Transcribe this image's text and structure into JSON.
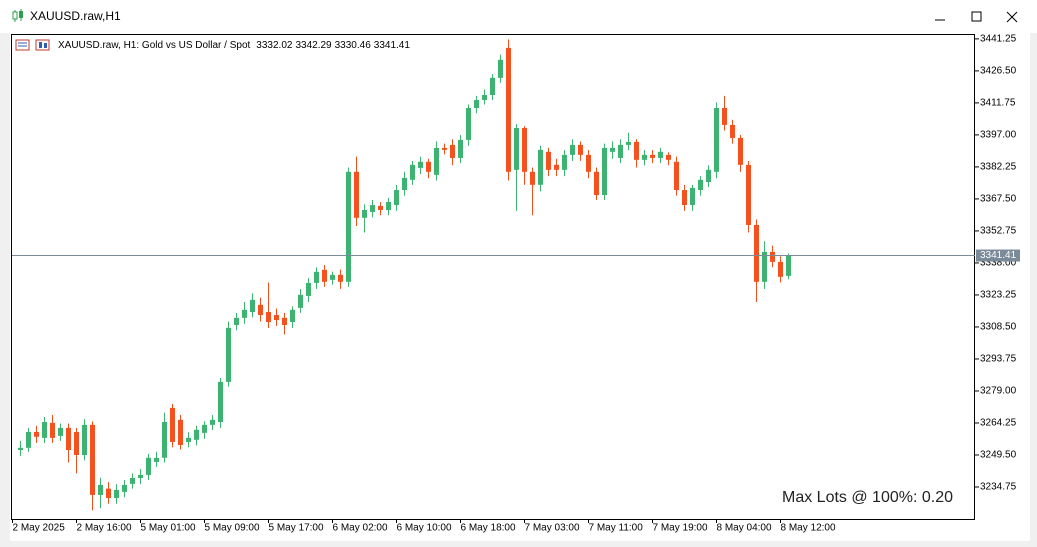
{
  "window_title": "XAUUSD.raw,H1",
  "chart_data": {
    "type": "candlestick",
    "symbol_info": "XAUUSD.raw, H1:  Gold vs US Dollar / Spot",
    "annotation": "Max Lots @ 100%: 0.20",
    "last_price": 3341.41,
    "up_color": "#3cb371",
    "down_color": "#f4511e",
    "categories": [
      "2 May 2025",
      null,
      null,
      null,
      null,
      null,
      null,
      null,
      "2 May 16:00",
      null,
      null,
      null,
      null,
      null,
      null,
      null,
      "5 May 01:00",
      null,
      null,
      null,
      null,
      null,
      null,
      null,
      "5 May 09:00",
      null,
      null,
      null,
      null,
      null,
      null,
      null,
      "5 May 17:00",
      null,
      null,
      null,
      null,
      null,
      null,
      null,
      "6 May 02:00",
      null,
      null,
      null,
      null,
      null,
      null,
      null,
      "6 May 10:00",
      null,
      null,
      null,
      null,
      null,
      null,
      null,
      "6 May 18:00",
      null,
      null,
      null,
      null,
      null,
      null,
      null,
      "7 May 03:00",
      null,
      null,
      null,
      null,
      null,
      null,
      null,
      "7 May 11:00",
      null,
      null,
      null,
      null,
      null,
      null,
      null,
      "7 May 19:00",
      null,
      null,
      null,
      null,
      null,
      null,
      null,
      "8 May 04:00",
      null,
      null,
      null,
      null,
      null,
      null,
      null,
      "8 May 12:00"
    ],
    "open": [
      3251.8,
      3252.8,
      3260.1,
      3257.4,
      3264.3,
      3258.3,
      3262.0,
      3260.1,
      3249.5,
      3263.4,
      3231.1,
      3234.0,
      3229.7,
      3232.5,
      3236.2,
      3238.9,
      3240.3,
      3246.3,
      3248.2,
      3271.2,
      3265.7,
      3255.5,
      3256.5,
      3259.7,
      3263.4,
      3264.7,
      3283.2,
      3309.4,
      3312.7,
      3315.4,
      3318.7,
      3315.4,
      3314.0,
      3312.7,
      3310.8,
      3317.3,
      3322.8,
      3328.8,
      3334.8,
      3330.2,
      3332.5,
      3329.3,
      3380.0,
      3358.8,
      3361.5,
      3364.3,
      3362.4,
      3364.7,
      3371.6,
      3376.3,
      3381.8,
      3384.6,
      3378.6,
      3391.0,
      3392.4,
      3386.4,
      3394.7,
      3409.4,
      3413.1,
      3415.4,
      3423.3,
      3437.1,
      3380.9,
      3400.2,
      3380.0,
      3374.0,
      3389.2,
      3383.2,
      3380.9,
      3387.8,
      3392.4,
      3387.8,
      3380.0,
      3369.3,
      3389.2,
      3386.4,
      3392.4,
      3393.8,
      3385.5,
      3387.8,
      3386.4,
      3387.8,
      3384.6,
      3371.6,
      3364.7,
      3371.6,
      3375.3,
      3380.0,
      3409.4,
      3401.6,
      3395.6,
      3383.2,
      3355.5,
      3329.3,
      3343.1,
      3338.5,
      3332.02
    ],
    "high": [
      3256,
      3262,
      3263,
      3267,
      3268,
      3264,
      3264,
      3262,
      3266,
      3265,
      3239,
      3237,
      3236,
      3238,
      3241,
      3243,
      3250,
      3251,
      3269,
      3273,
      3268,
      3260,
      3263,
      3265,
      3268,
      3285,
      3311,
      3315,
      3320,
      3324,
      3322,
      3329,
      3317,
      3315,
      3318,
      3326,
      3331,
      3336,
      3337,
      3334,
      3335,
      3382,
      3387,
      3365,
      3367,
      3366,
      3368,
      3374,
      3380,
      3385,
      3387,
      3386,
      3394,
      3393,
      3395,
      3397,
      3411,
      3415,
      3418,
      3425,
      3434,
      3441,
      3402,
      3401,
      3382,
      3392,
      3391,
      3386,
      3390,
      3395,
      3394,
      3390,
      3382,
      3393,
      3394,
      3395,
      3398,
      3395,
      3390,
      3390,
      3391,
      3389,
      3387,
      3374,
      3374,
      3378,
      3383,
      3412,
      3415,
      3404,
      3397,
      3385,
      3358,
      3348,
      3346,
      3341,
      3342.29
    ],
    "low": [
      3249,
      3251,
      3255,
      3255,
      3255,
      3256,
      3246,
      3241,
      3247,
      3224,
      3225,
      3227,
      3227,
      3230,
      3234,
      3236,
      3238,
      3244,
      3246,
      3253,
      3252,
      3253,
      3254,
      3257,
      3261,
      3262,
      3281,
      3307,
      3310,
      3313,
      3311,
      3308,
      3309,
      3305,
      3308,
      3315,
      3320,
      3326,
      3327,
      3328,
      3326,
      3327,
      3355,
      3352,
      3359,
      3360,
      3360,
      3362,
      3369,
      3374,
      3379,
      3377,
      3376,
      3388,
      3383,
      3384,
      3392,
      3407,
      3411,
      3413,
      3421,
      3376,
      3362,
      3374,
      3360,
      3371,
      3378,
      3378,
      3378,
      3385,
      3385,
      3377,
      3367,
      3367,
      3386,
      3384,
      3390,
      3382,
      3383,
      3384,
      3384,
      3383,
      3369,
      3362,
      3362,
      3369,
      3373,
      3377,
      3399,
      3393,
      3380,
      3352,
      3320,
      3326,
      3336,
      3329,
      3330.46
    ],
    "close": [
      3252.8,
      3260.1,
      3257.9,
      3264.7,
      3257.4,
      3262.0,
      3251.8,
      3249.5,
      3263.4,
      3231.1,
      3235.7,
      3229.7,
      3233.4,
      3235.7,
      3238.9,
      3240.3,
      3248.2,
      3248.2,
      3264.7,
      3255.5,
      3254.1,
      3257.4,
      3261.1,
      3263.4,
      3265.7,
      3283.2,
      3308.1,
      3312.7,
      3316.4,
      3321.0,
      3314.0,
      3310.8,
      3311.7,
      3309.4,
      3316.4,
      3323.3,
      3328.8,
      3333.9,
      3329.3,
      3332.5,
      3329.3,
      3380.0,
      3358.8,
      3362.4,
      3364.7,
      3362.4,
      3366.1,
      3371.6,
      3377.2,
      3383.2,
      3384.6,
      3380.0,
      3391.0,
      3390.1,
      3386.4,
      3394.7,
      3409.4,
      3413.1,
      3415.4,
      3423.3,
      3431.6,
      3380.0,
      3400.2,
      3380.0,
      3374.0,
      3390.1,
      3380.9,
      3380.9,
      3387.8,
      3392.4,
      3387.8,
      3380.0,
      3369.3,
      3391.0,
      3391.0,
      3392.4,
      3393.8,
      3385.5,
      3387.8,
      3386.4,
      3389.2,
      3385.5,
      3371.6,
      3364.7,
      3372.6,
      3376.3,
      3380.9,
      3409.4,
      3401.6,
      3395.6,
      3383.2,
      3355.5,
      3329.3,
      3343.1,
      3338.5,
      3331.6,
      3341.41
    ],
    "ylim": [
      3220,
      3443.5
    ],
    "yticks": [
      3441.25,
      {
        "value": 3426.5,
        "label": "3426.50"
      },
      3411.75,
      {
        "value": 3397,
        "label": "3397.00"
      },
      3382.25,
      {
        "value": 3367.5,
        "label": "3367.50"
      },
      3352.75,
      {
        "value": 3338,
        "label": "3338.00"
      },
      3323.25,
      {
        "value": 3308.5,
        "label": "3308.50"
      },
      3293.75,
      {
        "value": 3279,
        "label": "3279.00"
      },
      3264.25,
      {
        "value": 3249.5,
        "label": "3249.50"
      },
      3234.75
    ]
  }
}
